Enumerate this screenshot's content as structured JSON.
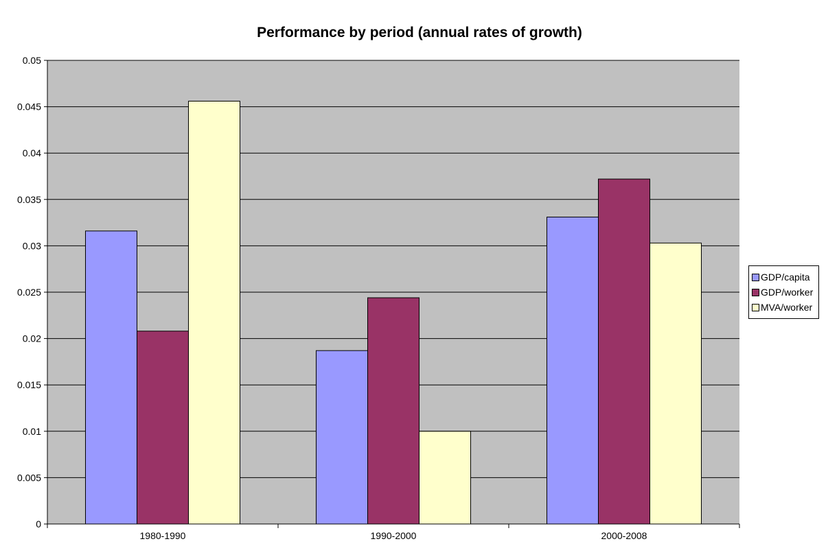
{
  "chart_data": {
    "type": "bar",
    "title": "Performance by period (annual rates of growth)",
    "categories": [
      "1980-1990",
      "1990-2000",
      "2000-2008"
    ],
    "series": [
      {
        "name": "GDP/capita",
        "color": "#9999ff",
        "values": [
          0.0316,
          0.0187,
          0.0331
        ]
      },
      {
        "name": "GDP/worker",
        "color": "#993366",
        "values": [
          0.0208,
          0.0244,
          0.0372
        ]
      },
      {
        "name": "MVA/worker",
        "color": "#ffffcc",
        "values": [
          0.0456,
          0.01,
          0.0303
        ]
      }
    ],
    "ylim": [
      0,
      0.05
    ],
    "yticks": [
      "0",
      "0.005",
      "0.01",
      "0.015",
      "0.02",
      "0.025",
      "0.03",
      "0.035",
      "0.04",
      "0.045",
      "0.05"
    ],
    "plot_background": "#c0c0c0",
    "grid": true,
    "legend_position": "right"
  }
}
